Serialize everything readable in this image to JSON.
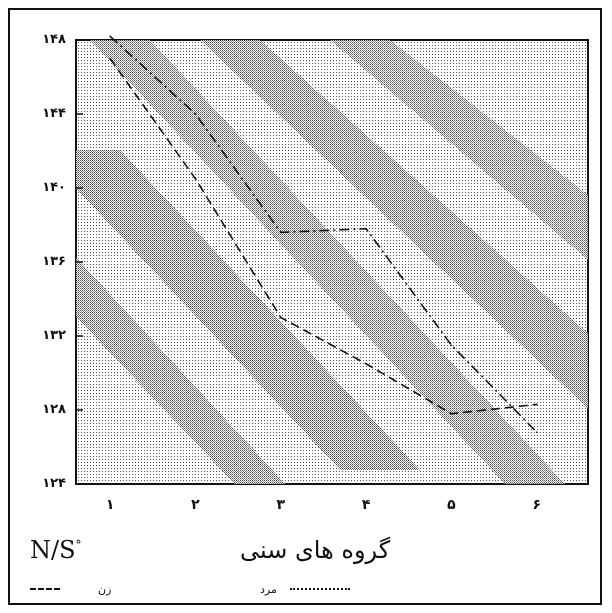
{
  "chart_data": {
    "type": "line",
    "title": "",
    "xlabel": "گروه های سنی",
    "ylabel": "",
    "corner_label": "N/S",
    "corner_label_sup": "°",
    "categories": [
      "۱",
      "۲",
      "۳",
      "۴",
      "۵",
      "۶"
    ],
    "x": [
      1,
      2,
      3,
      4,
      5,
      6
    ],
    "yticks": [
      124,
      128,
      132,
      136,
      140,
      144,
      148
    ],
    "ytick_labels": [
      "۱۲۴",
      "۱۲۸",
      "۱۳۲",
      "۱۳۶",
      "۱۴۰",
      "۱۴۴",
      "۱۴۸"
    ],
    "ylim": [
      124,
      148
    ],
    "xlim": [
      0.6,
      6.6
    ],
    "grid": false,
    "background": "stippled",
    "series": [
      {
        "name": "مرد",
        "style": "dash-dot",
        "color": "#111111",
        "values": [
          148.2,
          144.0,
          137.6,
          137.8,
          131.5,
          126.8
        ]
      },
      {
        "name": "زن",
        "style": "dashed",
        "color": "#111111",
        "values": [
          147.0,
          140.5,
          133.0,
          130.5,
          127.8,
          128.3
        ]
      }
    ],
    "legend": [
      {
        "label": "زن"
      },
      {
        "label": "مرد"
      }
    ]
  }
}
